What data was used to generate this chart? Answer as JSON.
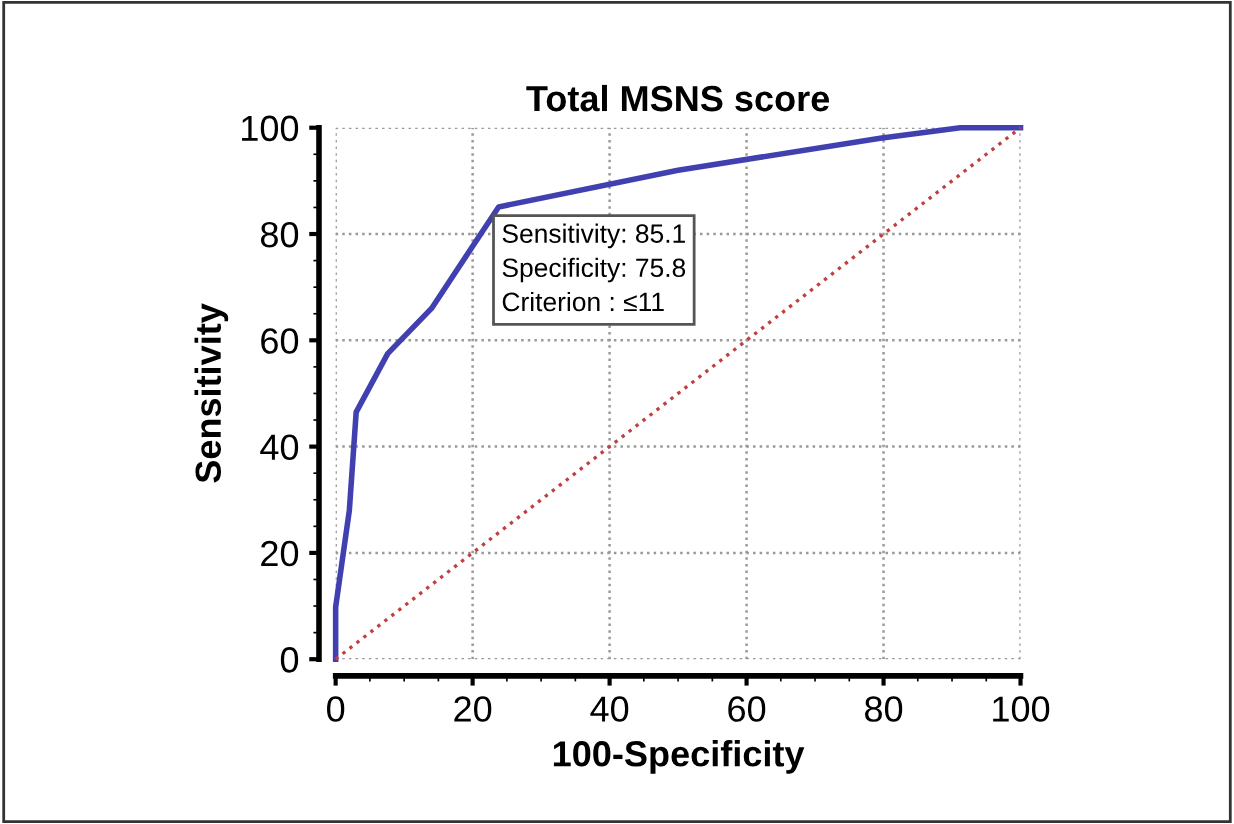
{
  "chart_data": {
    "type": "line",
    "title": "Total MSNS score",
    "xlabel": "100-Specificity",
    "ylabel": "Sensitivity",
    "series": [
      {
        "color": "#4040b0",
        "line_style": "solid",
        "x": [
          0,
          0,
          2,
          3,
          7.6,
          14,
          23.8,
          50,
          79.5,
          91.2,
          100
        ],
        "values": [
          0,
          9.8,
          28,
          46.5,
          57.5,
          66,
          85.1,
          92,
          98,
          100,
          100
        ]
      },
      {
        "color": "#c04040",
        "line_style": "dotted",
        "x": [
          0,
          100
        ],
        "values": [
          0,
          100
        ]
      }
    ],
    "annotations": [
      {
        "text": "Sensitivity: 85.1\nSpecificity: 75.8\nCriterion : ≤11",
        "x": 23.8,
        "y": 85.1
      }
    ],
    "xlim": [
      0,
      100
    ],
    "ylim": [
      0,
      100
    ],
    "xticks": [
      0,
      20,
      40,
      60,
      80,
      100
    ],
    "yticks": [
      0,
      20,
      40,
      60,
      80,
      100
    ],
    "grid": true,
    "marker": "none"
  }
}
